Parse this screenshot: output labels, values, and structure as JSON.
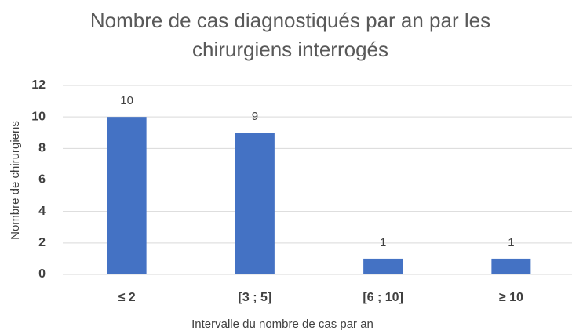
{
  "chart_data": {
    "type": "bar",
    "title": "Nombre de cas diagnostiqués par an par les chirurgiens interrogés",
    "xlabel": "Intervalle du nombre de cas par an",
    "ylabel": "Nombre de chirurgiens",
    "categories": [
      "≤ 2",
      "[3 ; 5]",
      "[6 ; 10]",
      "≥ 10"
    ],
    "values": [
      10,
      9,
      1,
      1
    ],
    "color": "#4472c4",
    "ylim": [
      0,
      12
    ],
    "yticks": [
      0,
      2,
      4,
      6,
      8,
      10,
      12
    ],
    "grid": true
  }
}
